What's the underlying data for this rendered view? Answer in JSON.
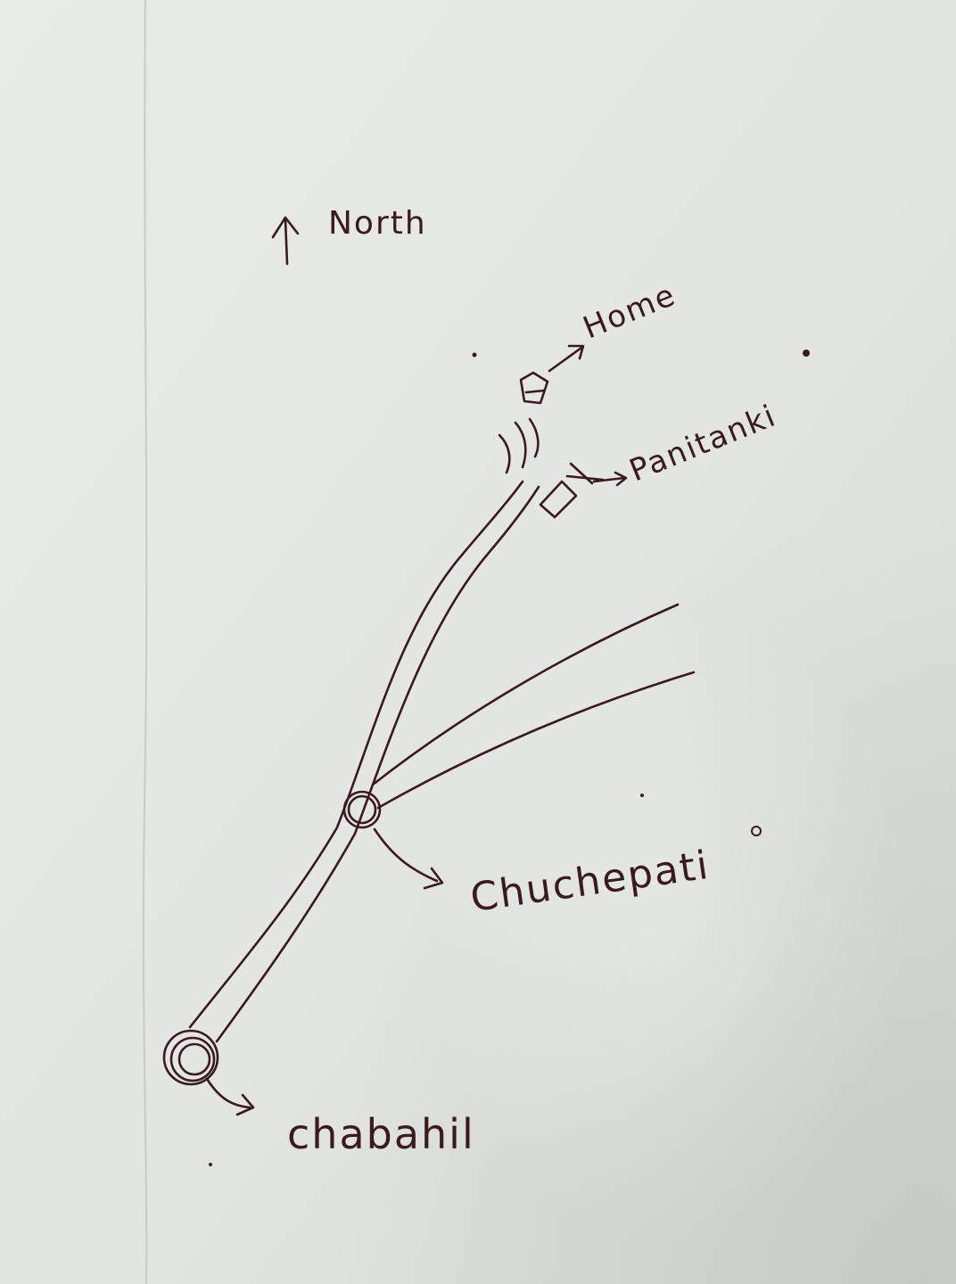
{
  "map": {
    "north_label": "North",
    "places": {
      "home": "Home",
      "panitanki": "Panitanki",
      "chuchepati": "Chuchepati",
      "chabahil": "chabahil"
    }
  },
  "colors": {
    "paper": "#e6e9e5",
    "paper_shadow": "#c9ccc8",
    "ink": "#3a1a1c"
  },
  "icons": [
    "north-arrow-icon",
    "roundabout-icon",
    "tank-icon",
    "house-icon",
    "pointer-arrow-icon"
  ]
}
